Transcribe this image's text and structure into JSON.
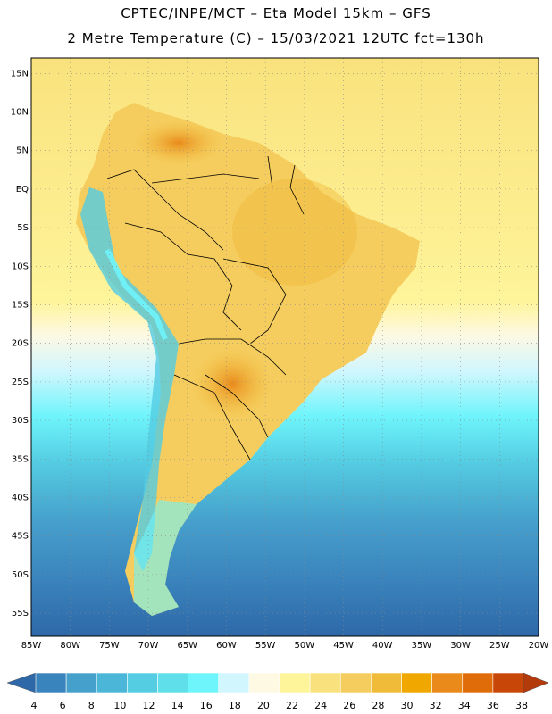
{
  "header": {
    "line1": "CPTEC/INPE/MCT –  Eta Model 15km – GFS",
    "line2": "2 Metre Temperature (C) – 15/03/2021 12UTC fct=130h"
  },
  "map": {
    "lon_range": [
      -85,
      -20
    ],
    "lat_range": [
      -58,
      17
    ],
    "lat_labels": [
      "15N",
      "10N",
      "5N",
      "EQ",
      "5S",
      "10S",
      "15S",
      "20S",
      "25S",
      "30S",
      "35S",
      "40S",
      "45S",
      "50S",
      "55S"
    ],
    "lat_values": [
      15,
      10,
      5,
      0,
      -5,
      -10,
      -15,
      -20,
      -25,
      -30,
      -35,
      -40,
      -45,
      -50,
      -55
    ],
    "lon_labels": [
      "85W",
      "80W",
      "75W",
      "70W",
      "65W",
      "60W",
      "55W",
      "50W",
      "45W",
      "40W",
      "35W",
      "30W",
      "25W",
      "20W"
    ],
    "lon_values": [
      -85,
      -80,
      -75,
      -70,
      -65,
      -60,
      -55,
      -50,
      -45,
      -40,
      -35,
      -30,
      -25,
      -20
    ]
  },
  "colorbar": {
    "labels": [
      "4",
      "6",
      "8",
      "10",
      "12",
      "14",
      "16",
      "18",
      "20",
      "22",
      "24",
      "26",
      "28",
      "30",
      "32",
      "34",
      "36",
      "38"
    ],
    "colors": [
      "#2e68a8",
      "#3a84bd",
      "#46a0cc",
      "#4cb6d8",
      "#54cce2",
      "#5fdfea",
      "#6ef4fb",
      "#d2f6fd",
      "#fdf9e3",
      "#fef49a",
      "#f9e27d",
      "#f5cd5e",
      "#f1bb3a",
      "#f0a800",
      "#e98a1b",
      "#e06b09",
      "#c84608",
      "#b33a0a"
    ]
  }
}
